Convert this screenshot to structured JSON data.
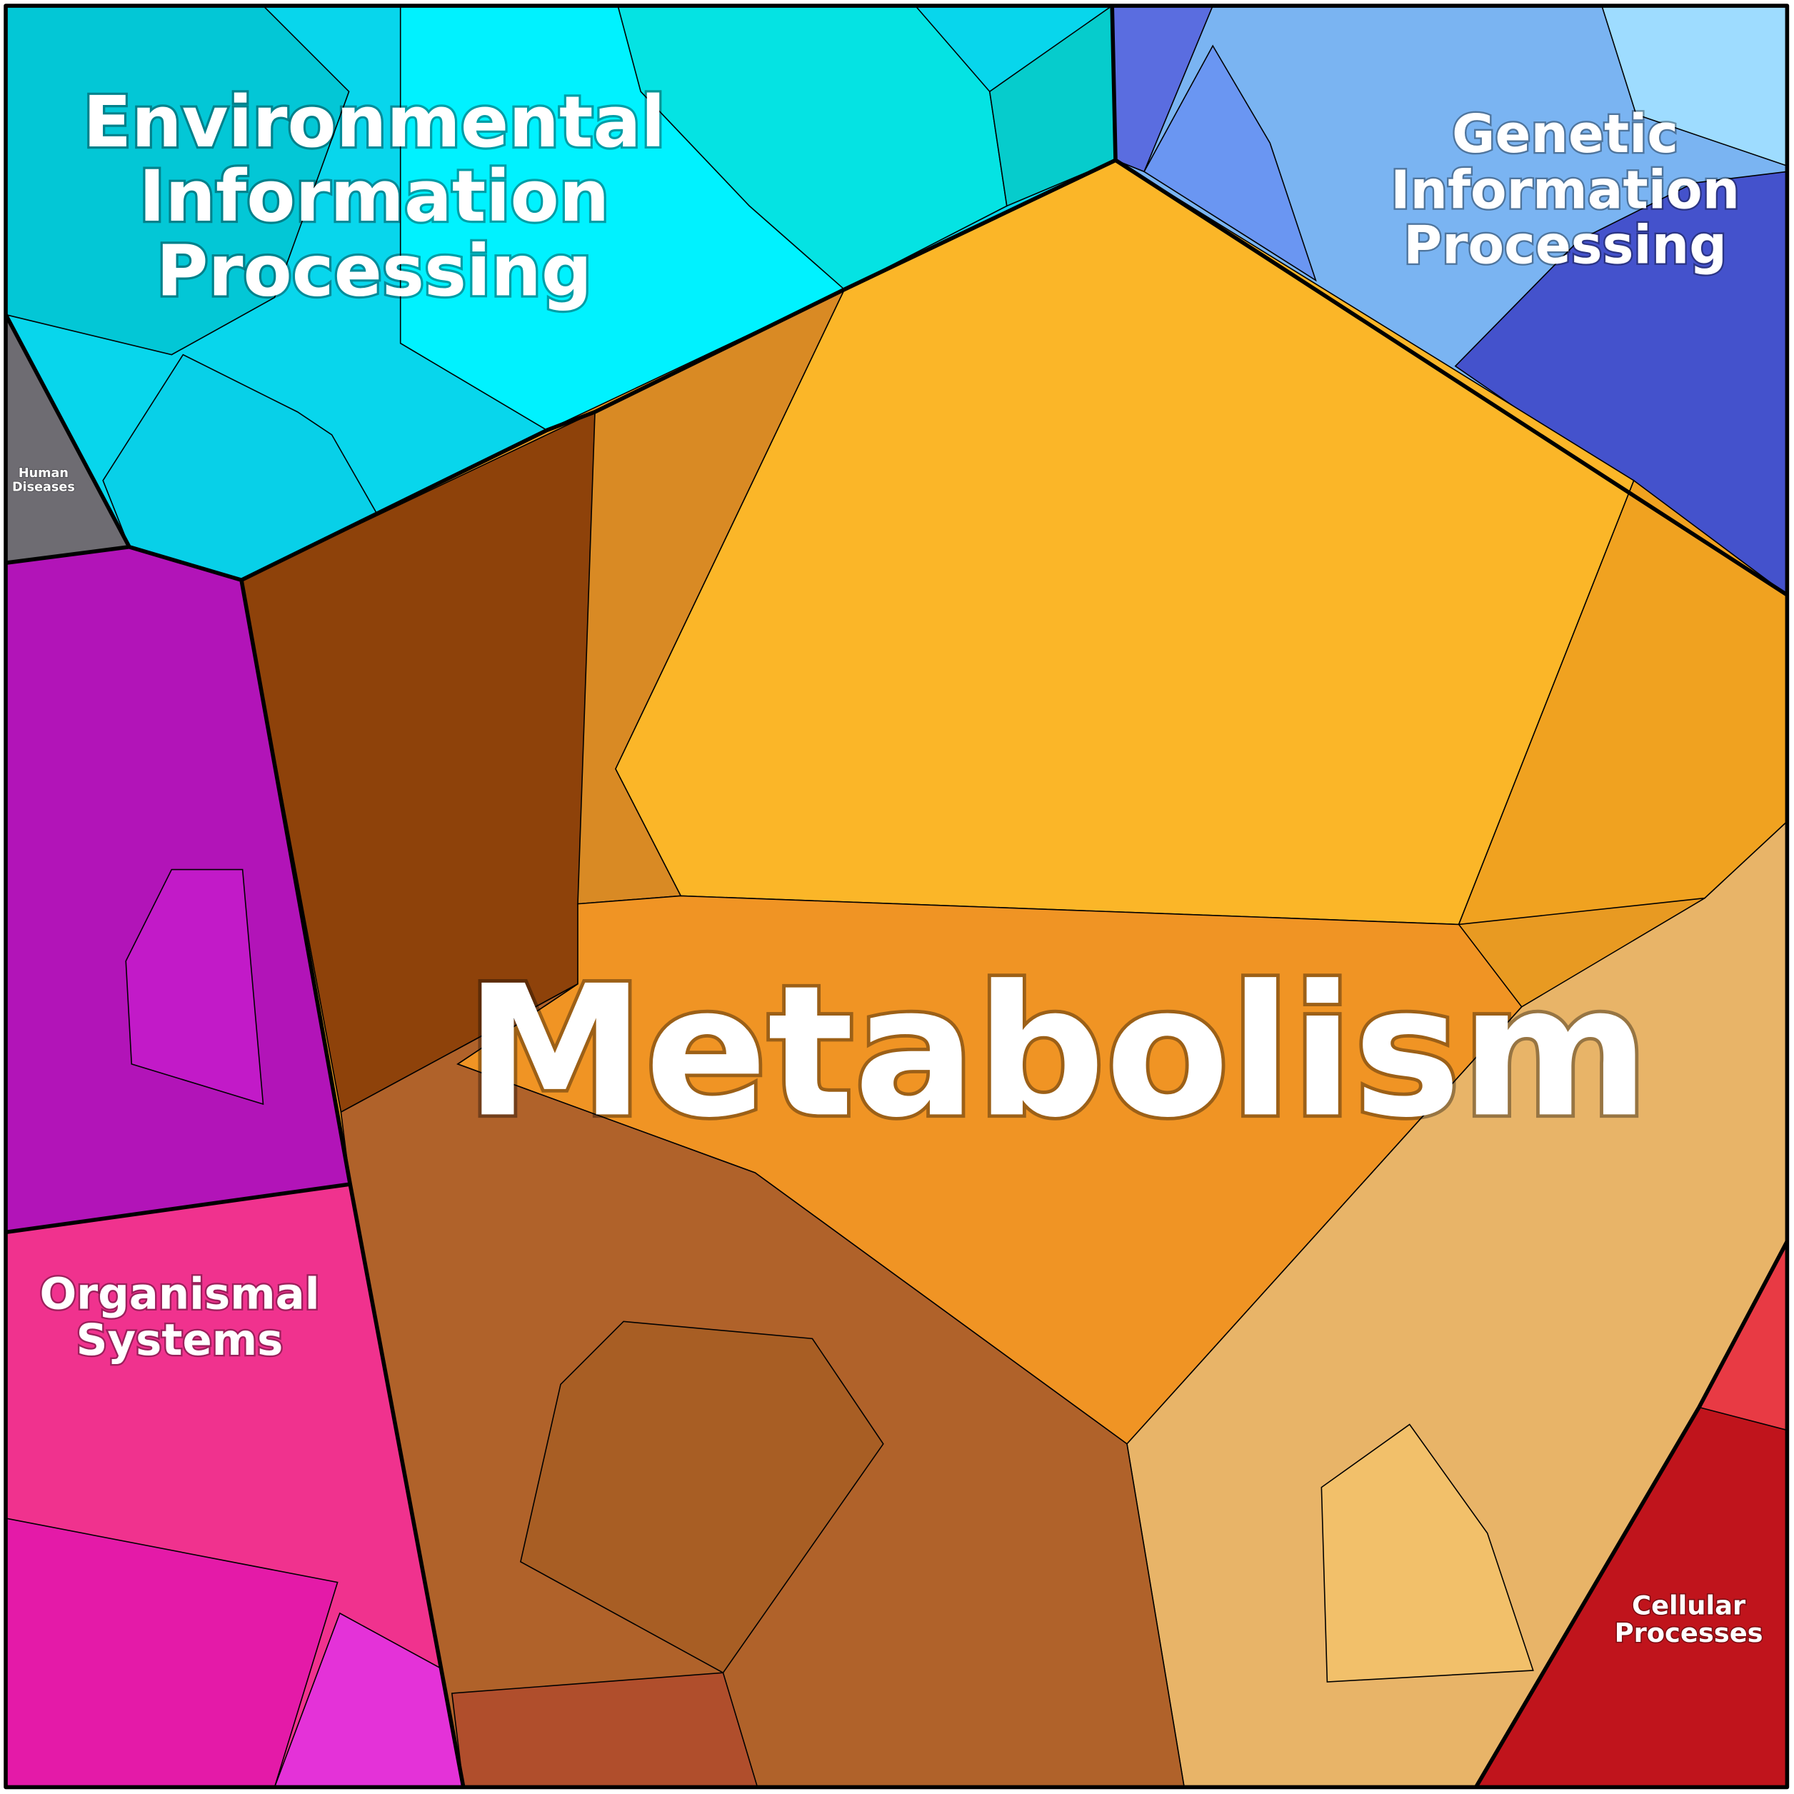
{
  "labels": [
    {
      "lines": [
        "Environmental",
        "Information",
        "Processing"
      ]
    },
    {
      "lines": [
        "Genetic",
        "Information",
        "Processing"
      ]
    },
    {
      "lines": [
        "Human",
        "Diseases"
      ]
    },
    {
      "lines": [
        "Metabolism"
      ]
    },
    {
      "lines": [
        "Organismal",
        "Systems"
      ]
    },
    {
      "lines": [
        "Cellular",
        "Processes"
      ]
    }
  ]
}
